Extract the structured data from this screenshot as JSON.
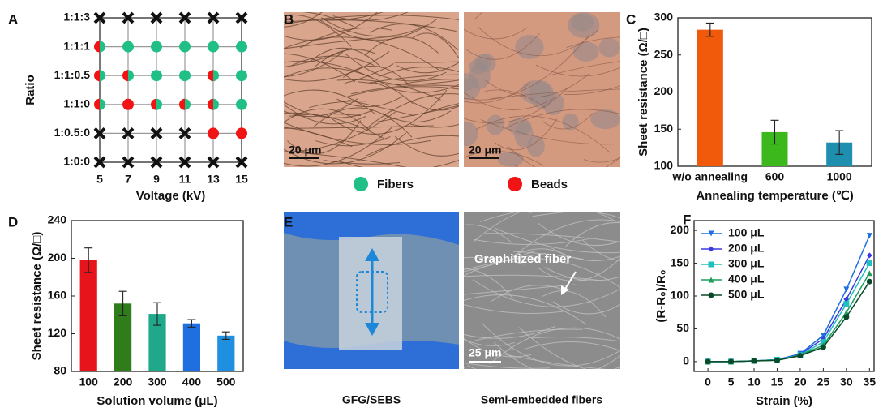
{
  "panel_labels": [
    "A",
    "B",
    "C",
    "D",
    "E",
    "F"
  ],
  "images": {
    "B": {
      "scale_bars": [
        "20 μm",
        "20 μm"
      ]
    },
    "E": {
      "annotation": "Graphitized fiber",
      "scale_bar": "25 μm",
      "captions": [
        "GFG/SEBS",
        "Semi-embedded fibers"
      ]
    }
  },
  "chart_data": [
    {
      "type": "scatter",
      "xlabel": "Voltage (kV)",
      "ylabel": "Ratio",
      "xlim": [
        5,
        15
      ],
      "xticks": [
        5,
        7,
        9,
        11,
        13,
        15
      ],
      "ycategories": [
        "1:0:0",
        "1:0.5:0",
        "1:1:0",
        "1:1:0.5",
        "1:1:1",
        "1:1:3"
      ],
      "grid": true,
      "series": [
        {
          "name": "Fibers",
          "color": "#1fbf85",
          "marker": "circle",
          "x": [
            5,
            7,
            9,
            11,
            13,
            15,
            5,
            7,
            9,
            11,
            13,
            15,
            5,
            9,
            11,
            13,
            15
          ],
          "y": [
            "1:1:1",
            "1:1:1",
            "1:1:1",
            "1:1:1",
            "1:1:1",
            "1:1:1",
            "1:1:0.5",
            "1:1:0.5",
            "1:1:0.5",
            "1:1:0.5",
            "1:1:0.5",
            "1:1:0.5",
            "1:1:0",
            "1:1:0",
            "1:1:0",
            "1:1:0",
            "1:1:0"
          ]
        },
        {
          "name": "Beads",
          "color": "#f01414",
          "marker": "circle",
          "x": [
            5,
            5,
            7,
            13,
            5,
            7,
            9,
            11,
            13,
            13,
            15
          ],
          "y": [
            "1:1:1",
            "1:1:0.5",
            "1:1:0.5",
            "1:1:0.5",
            "1:1:0",
            "1:1:0",
            "1:1:0",
            "1:1:0",
            "1:1:0",
            "1:0.5:0",
            "1:0.5:0"
          ]
        },
        {
          "color": "#111111",
          "marker": "x",
          "x": [
            5,
            7,
            9,
            11,
            13,
            15,
            5,
            7,
            9,
            11,
            5,
            7,
            9,
            11,
            13,
            15
          ],
          "y": [
            "1:1:3",
            "1:1:3",
            "1:1:3",
            "1:1:3",
            "1:1:3",
            "1:1:3",
            "1:0.5:0",
            "1:0.5:0",
            "1:0.5:0",
            "1:0.5:0",
            "1:0:0",
            "1:0:0",
            "1:0:0",
            "1:0:0",
            "1:0:0",
            "1:0:0"
          ]
        }
      ]
    },
    {
      "type": "bar",
      "xlabel": "Annealing temperature (℃)",
      "ylabel": "Sheet resistance (Ω/□)",
      "categories": [
        "w/o annealing",
        "600",
        "1000"
      ],
      "values": [
        284,
        146,
        132
      ],
      "errors": [
        9,
        16,
        16
      ],
      "colors": [
        "#f05a0a",
        "#3cb81c",
        "#1f8fb0"
      ],
      "ylim": [
        100,
        300
      ],
      "yticks": [
        100,
        150,
        200,
        250,
        300
      ]
    },
    {
      "type": "bar",
      "xlabel": "Solution volume (μL)",
      "ylabel": "Sheet resistance (Ω/□)",
      "categories": [
        "100",
        "200",
        "300",
        "400",
        "500"
      ],
      "values": [
        198,
        152,
        141,
        131,
        118
      ],
      "errors": [
        13,
        13,
        12,
        4,
        4
      ],
      "colors": [
        "#e8141c",
        "#2e7d1a",
        "#1fa88a",
        "#1f6fe0",
        "#1f8fe0"
      ],
      "ylim": [
        80,
        240
      ],
      "yticks": [
        80,
        120,
        160,
        200,
        240
      ]
    },
    {
      "type": "line",
      "xlabel": "Strain (%)",
      "ylabel": "(R-R₀)/R₀",
      "x": [
        0,
        5,
        10,
        15,
        20,
        25,
        30,
        35
      ],
      "xlim": [
        -3,
        36
      ],
      "xticks": [
        0,
        5,
        10,
        15,
        20,
        25,
        30,
        35
      ],
      "ylim": [
        -15,
        215
      ],
      "yticks": [
        0,
        50,
        100,
        150,
        200
      ],
      "legend": "upper left",
      "series": [
        {
          "name": "100 μL",
          "color": "#1e6fe0",
          "marker": "triangle-down",
          "values": [
            0,
            0,
            1,
            3,
            12,
            40,
            110,
            192
          ]
        },
        {
          "name": "200 μL",
          "color": "#3a3ae0",
          "marker": "diamond",
          "values": [
            0,
            0,
            1,
            3,
            11,
            35,
            95,
            162
          ]
        },
        {
          "name": "300 μL",
          "color": "#1fc0c0",
          "marker": "square",
          "values": [
            0,
            0,
            1,
            3,
            10,
            30,
            88,
            150
          ]
        },
        {
          "name": "400 μL",
          "color": "#1a9e5a",
          "marker": "triangle-up",
          "values": [
            0,
            0,
            1,
            2,
            10,
            25,
            75,
            135
          ]
        },
        {
          "name": "500 μL",
          "color": "#0a4a2a",
          "marker": "circle",
          "values": [
            0,
            0,
            1,
            2,
            9,
            22,
            68,
            122
          ]
        }
      ]
    }
  ]
}
